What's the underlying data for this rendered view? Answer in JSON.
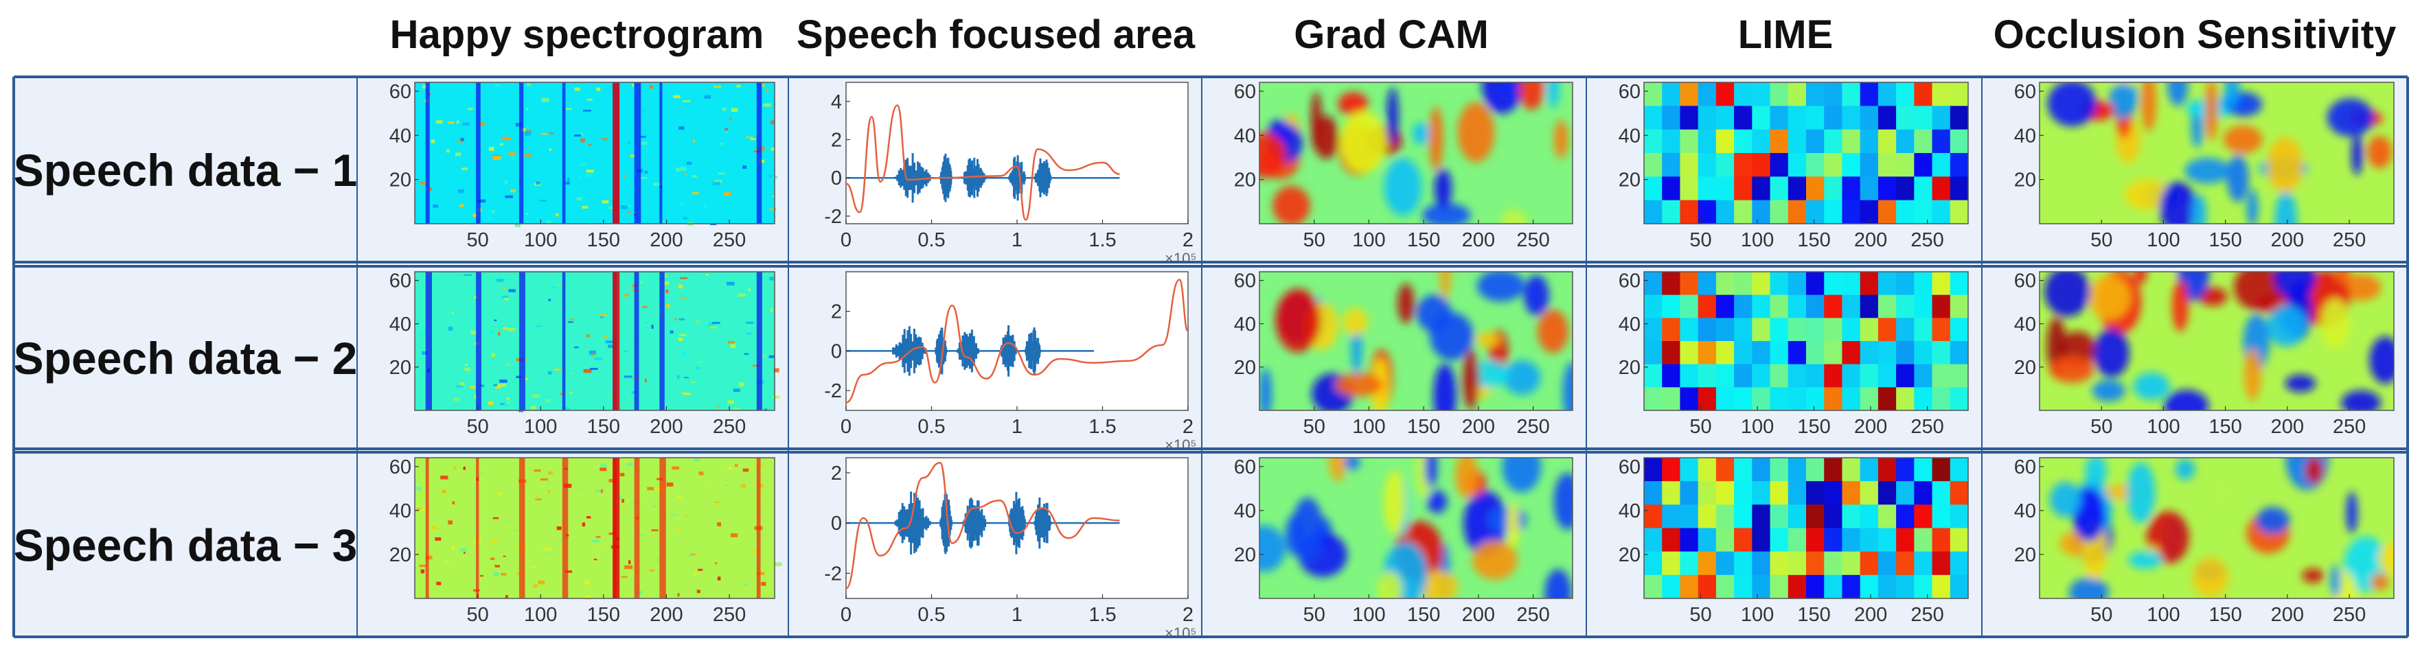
{
  "columns": [
    "Happy spectrogram",
    "Speech focused area",
    "Grad CAM",
    "LIME",
    "Occlusion Sensitivity"
  ],
  "rows": [
    "Speech data − 1",
    "Speech data − 2",
    "Speech data − 3"
  ],
  "colors": {
    "panel_bg": "#eaf1fa",
    "border": "#2d5b96",
    "signal": "#1f6fb5",
    "curve": "#e5603e"
  },
  "chart_data": {
    "type": "heatmap",
    "title": "",
    "panel_types": [
      "spectrogram",
      "waveform",
      "gradcam",
      "lime",
      "occlusion"
    ],
    "heatmap_axes": {
      "x_ticks": [
        50,
        100,
        150,
        200,
        250
      ],
      "y_ticks": [
        20,
        40,
        60
      ],
      "xlim": [
        0,
        286
      ],
      "ylim": [
        0,
        64
      ],
      "colormap": "jet"
    },
    "waveform_axes": {
      "x_ticks": [
        0,
        0.5,
        1,
        1.5,
        2
      ],
      "x_multiplier": "×10⁵",
      "xlim": [
        0,
        2
      ],
      "y_ticks": [
        [
          4,
          2,
          0,
          -2
        ],
        [
          2,
          0,
          -2
        ],
        [
          2,
          0,
          -2
        ]
      ],
      "ylim": [
        [
          -2.4,
          5
        ],
        [
          -3,
          4
        ],
        [
          -3,
          2.6
        ]
      ],
      "signal_end": [
        1.6,
        1.45,
        1.6
      ]
    },
    "lime_grid": {
      "cols": 18,
      "rows": 6
    },
    "row_labels": [
      "Speech data − 1",
      "Speech data − 2",
      "Speech data − 3"
    ],
    "column_titles": [
      "Happy spectrogram",
      "Speech focused area",
      "Grad CAM",
      "LIME",
      "Occlusion Sensitivity"
    ]
  }
}
